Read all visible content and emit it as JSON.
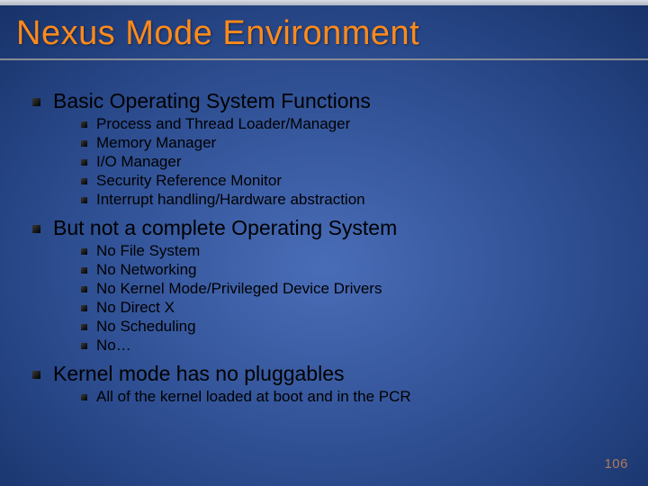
{
  "title": "Nexus Mode Environment",
  "page_number": "106",
  "page_number_color": "#b07a5a",
  "sections": [
    {
      "heading": "Basic Operating System Functions",
      "items": [
        "Process and Thread Loader/Manager",
        "Memory Manager",
        "I/O Manager",
        "Security Reference Monitor",
        "Interrupt handling/Hardware abstraction"
      ]
    },
    {
      "heading": "But not a complete Operating System",
      "items": [
        "No File System",
        "No Networking",
        "No Kernel Mode/Privileged Device Drivers",
        "No Direct X",
        "No Scheduling",
        "No…"
      ]
    },
    {
      "heading": "Kernel mode has no pluggables",
      "items": [
        "All of the kernel loaded at boot and in the PCR"
      ]
    }
  ]
}
